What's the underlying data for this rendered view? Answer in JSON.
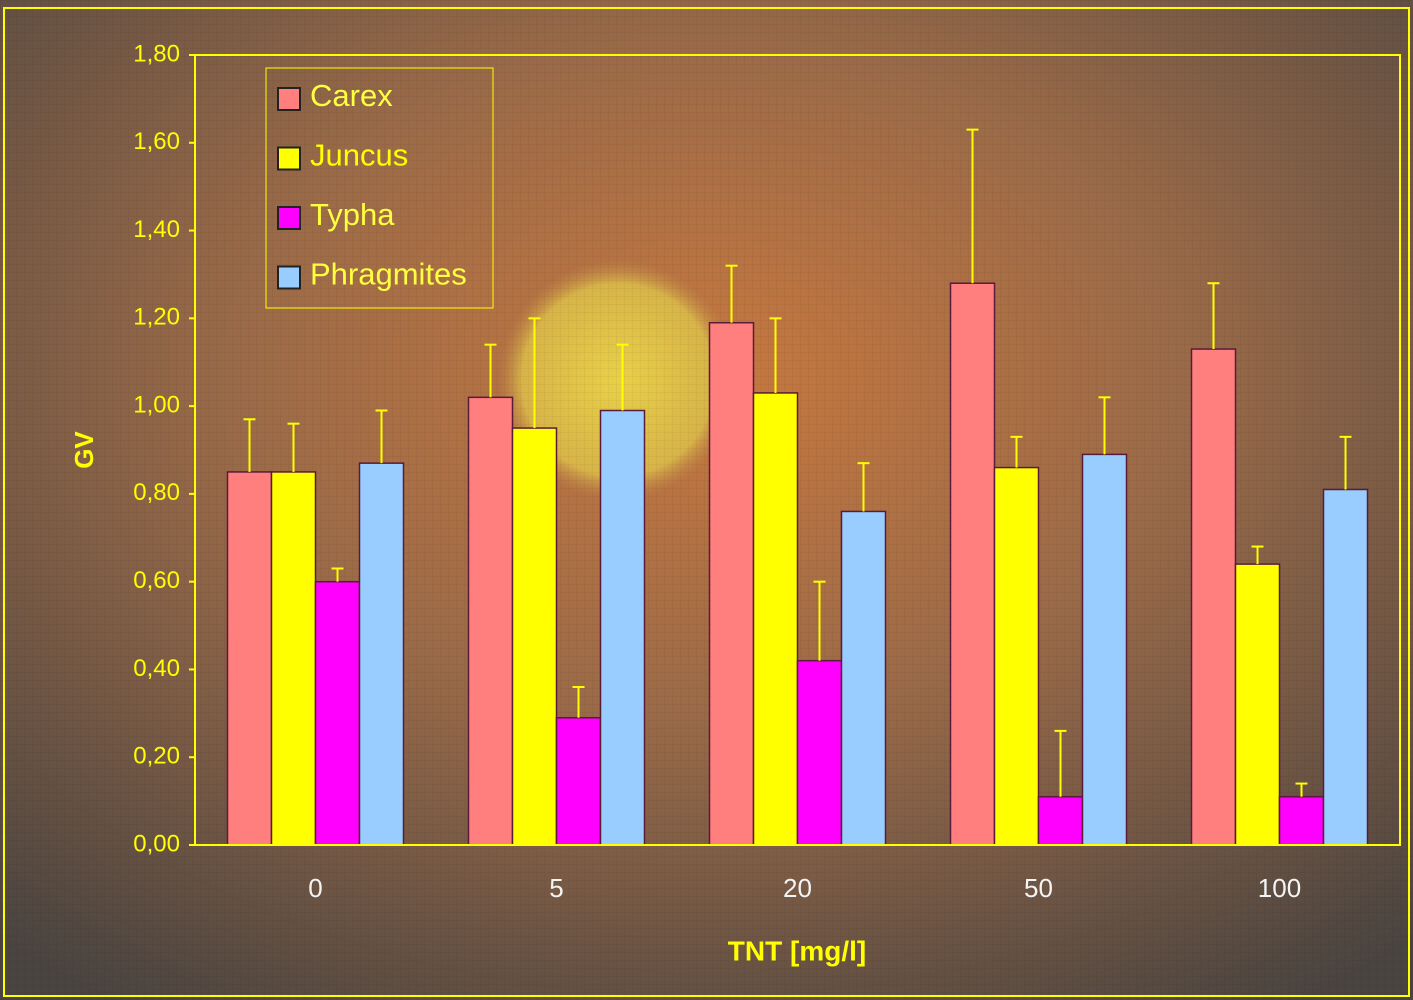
{
  "chart_data": {
    "type": "bar",
    "x_label": "TNT [mg/l]",
    "y_label": "GV",
    "categories": [
      "0",
      "5",
      "20",
      "50",
      "100"
    ],
    "series": [
      {
        "name": "Carex",
        "color": "#ff7f7f",
        "values": [
          0.85,
          1.02,
          1.19,
          1.28,
          1.13
        ],
        "errors": [
          0.12,
          0.12,
          0.13,
          0.35,
          0.15
        ]
      },
      {
        "name": "Juncus",
        "color": "#ffff00",
        "values": [
          0.85,
          0.95,
          1.03,
          0.86,
          0.64
        ],
        "errors": [
          0.11,
          0.25,
          0.17,
          0.07,
          0.04
        ]
      },
      {
        "name": "Typha",
        "color": "#ff00ff",
        "values": [
          0.6,
          0.29,
          0.42,
          0.11,
          0.11
        ],
        "errors": [
          0.03,
          0.07,
          0.18,
          0.15,
          0.03
        ]
      },
      {
        "name": "Phragmites",
        "color": "#99ccff",
        "values": [
          0.87,
          0.99,
          0.76,
          0.89,
          0.81
        ],
        "errors": [
          0.12,
          0.15,
          0.11,
          0.13,
          0.12
        ]
      }
    ],
    "ylim": [
      0,
      1.8
    ],
    "yticks": [
      {
        "value": 0,
        "label": "0,00"
      },
      {
        "value": 0.2,
        "label": "0,20"
      },
      {
        "value": 0.4,
        "label": "0,40"
      },
      {
        "value": 0.6,
        "label": "0,60"
      },
      {
        "value": 0.8,
        "label": "0,80"
      },
      {
        "value": 1.0,
        "label": "1,00"
      },
      {
        "value": 1.2,
        "label": "1,20"
      },
      {
        "value": 1.4,
        "label": "1,40"
      },
      {
        "value": 1.6,
        "label": "1,60"
      },
      {
        "value": 1.8,
        "label": "1,80"
      }
    ],
    "grid": false,
    "legend_position": "upper left",
    "error_bar_color": "#ffff00",
    "axis_color": "#ffff00"
  }
}
